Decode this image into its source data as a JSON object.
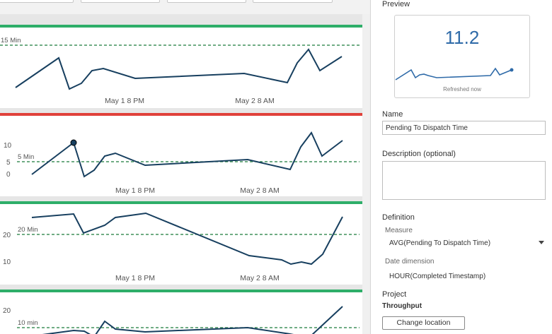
{
  "dashboard": {
    "cards": [
      {
        "status_color": "#2eae69",
        "target_label": "15 Min",
        "y_ticks": [],
        "x_ticks": [
          "May 1 8 PM",
          "May 2 8 AM"
        ]
      },
      {
        "status_color": "#e0413a",
        "target_label": "5 Min",
        "y_ticks": [
          "10",
          "5",
          "0"
        ],
        "x_ticks": [
          "May 1 8 PM",
          "May 2 8 AM"
        ]
      },
      {
        "status_color": "#2eae69",
        "target_label": "20 Min",
        "y_ticks": [
          "20",
          "10"
        ],
        "x_ticks": [
          "May 1 8 PM",
          "May 2 8 AM"
        ]
      },
      {
        "status_color": "#2eae69",
        "target_label": "10 min",
        "y_ticks": [
          "20"
        ],
        "x_ticks": []
      }
    ]
  },
  "panel": {
    "preview_title": "Preview",
    "preview_value": "11.2",
    "preview_caption": "Refreshed now",
    "name_label": "Name",
    "name_value": "Pending To Dispatch Time",
    "description_label": "Description (optional)",
    "description_value": "",
    "definition_label": "Definition",
    "measure_label": "Measure",
    "measure_value": "AVG(Pending To Dispatch Time)",
    "date_dimension_label": "Date dimension",
    "date_dimension_value": "HOUR(Completed Timestamp)",
    "project_label": "Project",
    "project_value": "Throughput",
    "change_location_label": "Change location"
  },
  "colors": {
    "line": "#173f5f",
    "target_line": "#1b7a3a",
    "preview_line": "#2e6aa8",
    "green_status": "#2eae69",
    "red_status": "#e0413a"
  }
}
